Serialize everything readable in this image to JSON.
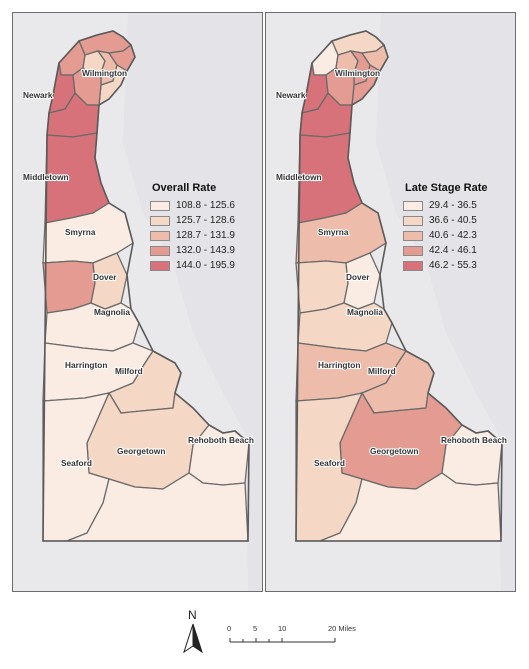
{
  "colors": {
    "class1": "#fbece3",
    "class2": "#f5d7c5",
    "class3": "#edbcab",
    "class4": "#e39b92",
    "class5": "#d8727a"
  },
  "panels": [
    {
      "legend_title": "Overall Rate",
      "classes": [
        "108.8 - 125.6",
        "125.7 - 128.6",
        "128.7 - 131.9",
        "132.0 - 143.9",
        "144.0 - 195.9"
      ],
      "region_class": {
        "north-tip": 4,
        "north-east": 4,
        "north-left": 4,
        "north-center": 3,
        "north-small": 2,
        "wilmington-south": 2,
        "newark-east": 4,
        "newark-west": 5,
        "central-newark": 5,
        "new-castle-south": 5,
        "smyrna": 1,
        "dover-area": 4,
        "dover-city": 2,
        "magnolia": 1,
        "harrington": 1,
        "milford": 2,
        "georgetown": 2,
        "seaford": 1,
        "rehoboth": 1,
        "southeast": 1
      },
      "places": {
        "wilmington": "Wilmington",
        "newark": "Newark",
        "middletown": "Middletown",
        "smyrna": "Smyrna",
        "dover": "Dover",
        "magnolia": "Magnolia",
        "harrington": "Harrington",
        "milford": "Milford",
        "georgetown": "Georgetown",
        "seaford": "Seaford",
        "rehoboth": "Rehoboth Beach"
      }
    },
    {
      "legend_title": "Late Stage Rate",
      "classes": [
        "29.4 - 36.5",
        "36.6 - 40.5",
        "40.6 - 42.3",
        "42.4 - 46.1",
        "46.2 - 55.3"
      ],
      "region_class": {
        "north-tip": 2,
        "north-east": 3,
        "north-left": 1,
        "north-center": 4,
        "north-small": 3,
        "wilmington-south": 4,
        "newark-east": 4,
        "newark-west": 5,
        "central-newark": 5,
        "new-castle-south": 5,
        "smyrna": 3,
        "dover-area": 2,
        "dover-city": 1,
        "magnolia": 2,
        "harrington": 3,
        "milford": 3,
        "georgetown": 4,
        "seaford": 2,
        "rehoboth": 1,
        "southeast": 1
      },
      "places": {
        "wilmington": "Wilmington",
        "newark": "Newark",
        "middletown": "Middletown",
        "smyrna": "Smyrna",
        "dover": "Dover",
        "magnolia": "Magnolia",
        "harrington": "Harrington",
        "milford": "Milford",
        "georgetown": "Georgetown",
        "seaford": "Seaford",
        "rehoboth": "Rehoboth Beach"
      }
    }
  ],
  "north_arrow": {
    "letter": "N",
    "icon": "north-arrow-icon"
  },
  "scale_bar": {
    "ticks": [
      "0",
      "5",
      "10",
      "20 Miles"
    ]
  }
}
